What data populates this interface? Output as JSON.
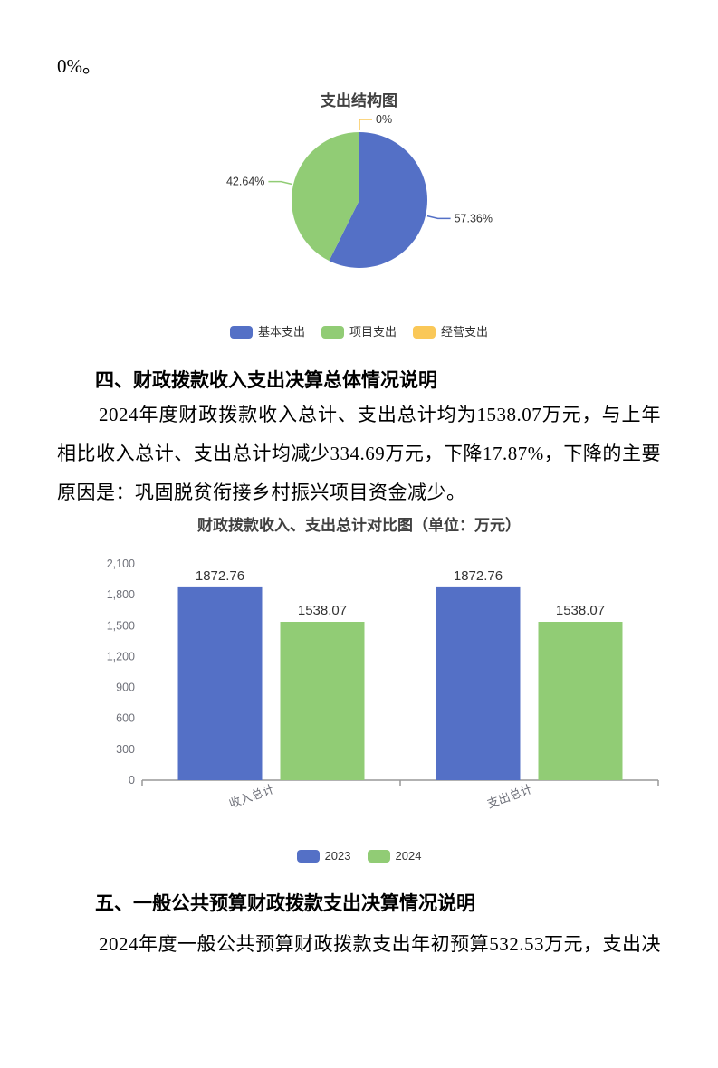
{
  "page": {
    "intro_text": "0%。"
  },
  "sections": {
    "four": {
      "heading": "四、财政拨款收入支出决算总体情况说明",
      "paragraph_lines": [
        "2024年度财政拨款收入总计、支出总计均为1538.07万元，与上年",
        "相比收入总计、支出总计均减少334.69万元，下降17.87%，下降的主要",
        "原因是：巩固脱贫衔接乡村振兴项目资金减少。"
      ]
    },
    "five": {
      "heading": "五、一般公共预算财政拨款支出决算情况说明",
      "paragraph_lines": [
        "2024年度一般公共预算财政拨款支出年初预算532.53万元，支出决"
      ]
    }
  },
  "chart_data": [
    {
      "type": "pie",
      "title": "支出结构图",
      "labels": [
        "基本支出",
        "项目支出",
        "经营支出"
      ],
      "values": [
        57.36,
        42.64,
        0
      ],
      "value_labels": [
        "57.36%",
        "42.64%",
        "0%"
      ],
      "colors": [
        "#5470C6",
        "#91CC75",
        "#FAC858"
      ],
      "start_angle": "top-clockwise",
      "legend_position": "bottom"
    },
    {
      "type": "bar",
      "title": "财政拨款收入、支出总计对比图（单位：万元）",
      "categories": [
        "收入总计",
        "支出总计"
      ],
      "series": [
        {
          "name": "2023",
          "color": "#5470C6",
          "values": [
            1872.76,
            1872.76
          ]
        },
        {
          "name": "2024",
          "color": "#91CC75",
          "values": [
            1538.07,
            1538.07
          ]
        }
      ],
      "value_labels": [
        "1872.76",
        "1538.07"
      ],
      "ylim": [
        0,
        2100
      ],
      "ytick_step": 300,
      "ytick_labels": [
        "0",
        "300",
        "600",
        "900",
        "1,200",
        "1,500",
        "1,800",
        "2,100"
      ],
      "grid": false,
      "axis_color": "#999999",
      "legend_position": "bottom"
    }
  ]
}
